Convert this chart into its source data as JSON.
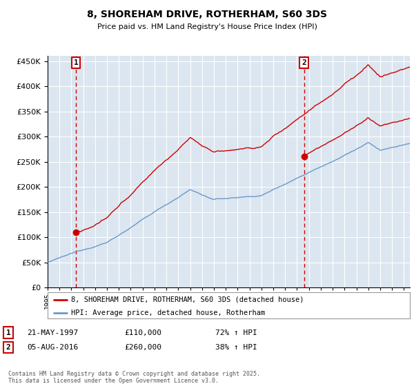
{
  "title": "8, SHOREHAM DRIVE, ROTHERHAM, S60 3DS",
  "subtitle": "Price paid vs. HM Land Registry's House Price Index (HPI)",
  "ylim": [
    0,
    460000
  ],
  "yticks": [
    0,
    50000,
    100000,
    150000,
    200000,
    250000,
    300000,
    350000,
    400000,
    450000
  ],
  "xlim_start": 1995.0,
  "xlim_end": 2025.5,
  "sale1_date": 1997.39,
  "sale1_price": 110000,
  "sale2_date": 2016.59,
  "sale2_price": 260000,
  "red_line_color": "#cc0000",
  "blue_line_color": "#6699cc",
  "marker_color": "#cc0000",
  "vline_color": "#cc0000",
  "bg_color": "#dce6f0",
  "grid_color": "#ffffff",
  "legend1_label": "8, SHOREHAM DRIVE, ROTHERHAM, S60 3DS (detached house)",
  "legend2_label": "HPI: Average price, detached house, Rotherham",
  "annotation1": "21-MAY-1997",
  "annotation1_price": "£110,000",
  "annotation1_hpi": "72% ↑ HPI",
  "annotation2": "05-AUG-2016",
  "annotation2_price": "£260,000",
  "annotation2_hpi": "38% ↑ HPI",
  "footer": "Contains HM Land Registry data © Crown copyright and database right 2025.\nThis data is licensed under the Open Government Licence v3.0.",
  "box_color": "#cc0000"
}
